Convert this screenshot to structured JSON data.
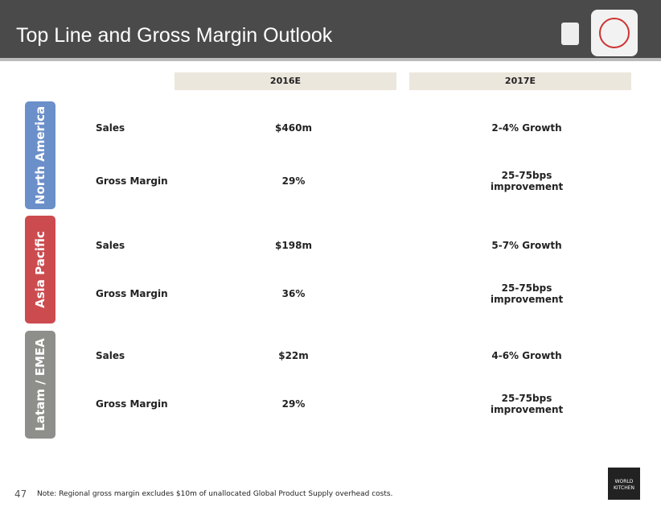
{
  "header": {
    "title": "Top Line and Gross Margin Outlook"
  },
  "columns": [
    "2016E",
    "2017E"
  ],
  "regions": [
    {
      "name": "North America",
      "color": "#6b8fc9",
      "rows": [
        [
          "Sales",
          "$460m",
          "2-4% Growth"
        ],
        [
          "Gross Margin",
          "29%",
          "25-75bps improvement"
        ]
      ]
    },
    {
      "name": "Asia Pacific",
      "color": "#cc4b4f",
      "rows": [
        [
          "Sales",
          "$198m",
          "5-7% Growth"
        ],
        [
          "Gross Margin",
          "36%",
          "25-75bps improvement"
        ]
      ]
    },
    {
      "name": "Latam / EMEA",
      "color": "#8e8e8a",
      "rows": [
        [
          "Sales",
          "$22m",
          "4-6% Growth"
        ],
        [
          "Gross Margin",
          "29%",
          "25-75bps improvement"
        ]
      ]
    }
  ],
  "footer": {
    "page": "47",
    "note": "Note:   Regional gross margin excludes $10m of unallocated Global Product Supply overhead costs.",
    "logo": [
      "WORLD",
      "KITCHEN"
    ]
  }
}
